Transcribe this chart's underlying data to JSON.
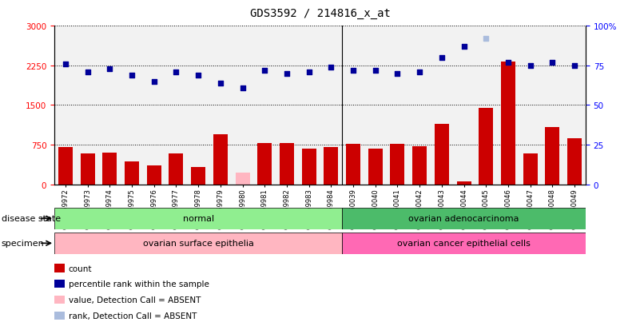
{
  "title": "GDS3592 / 214816_x_at",
  "samples": [
    "GSM359972",
    "GSM359973",
    "GSM359974",
    "GSM359975",
    "GSM359976",
    "GSM359977",
    "GSM359978",
    "GSM359979",
    "GSM359980",
    "GSM359981",
    "GSM359982",
    "GSM359983",
    "GSM359984",
    "GSM360039",
    "GSM360040",
    "GSM360041",
    "GSM360042",
    "GSM360043",
    "GSM360044",
    "GSM360045",
    "GSM360046",
    "GSM360047",
    "GSM360048",
    "GSM360049"
  ],
  "counts": [
    700,
    580,
    600,
    430,
    360,
    580,
    330,
    950,
    220,
    790,
    780,
    670,
    700,
    760,
    670,
    760,
    720,
    1150,
    65,
    1450,
    2330,
    590,
    1080,
    880
  ],
  "percentiles": [
    76,
    71,
    73,
    69,
    65,
    71,
    69,
    64,
    61,
    72,
    70,
    71,
    74,
    72,
    72,
    70,
    71,
    80,
    87,
    92,
    77,
    75,
    77,
    75
  ],
  "absent_count_idx": 8,
  "absent_rank_idx": 19,
  "count_absent": true,
  "rank_absent": true,
  "disease_state_groups": [
    {
      "label": "normal",
      "start": 0,
      "end": 13,
      "color": "#90EE90"
    },
    {
      "label": "ovarian adenocarcinoma",
      "start": 13,
      "end": 24,
      "color": "#4CBB6A"
    }
  ],
  "specimen_groups": [
    {
      "label": "ovarian surface epithelia",
      "start": 0,
      "end": 13,
      "color": "#FFB6C1"
    },
    {
      "label": "ovarian cancer epithelial cells",
      "start": 13,
      "end": 24,
      "color": "#FF69B4"
    }
  ],
  "left_yticks": [
    0,
    750,
    1500,
    2250,
    3000
  ],
  "right_yticks": [
    0,
    25,
    50,
    75,
    100
  ],
  "left_ylim": [
    0,
    3000
  ],
  "right_ylim": [
    0,
    100
  ],
  "bar_color": "#CC0000",
  "absent_bar_color": "#FFB6C1",
  "scatter_color": "#000099",
  "absent_scatter_color": "#AABCDD",
  "legend_items": [
    {
      "label": "count",
      "color": "#CC0000"
    },
    {
      "label": "percentile rank within the sample",
      "color": "#000099"
    },
    {
      "label": "value, Detection Call = ABSENT",
      "color": "#FFB6C1"
    },
    {
      "label": "rank, Detection Call = ABSENT",
      "color": "#AABCDD"
    }
  ],
  "disease_state_label": "disease state",
  "specimen_label": "specimen"
}
